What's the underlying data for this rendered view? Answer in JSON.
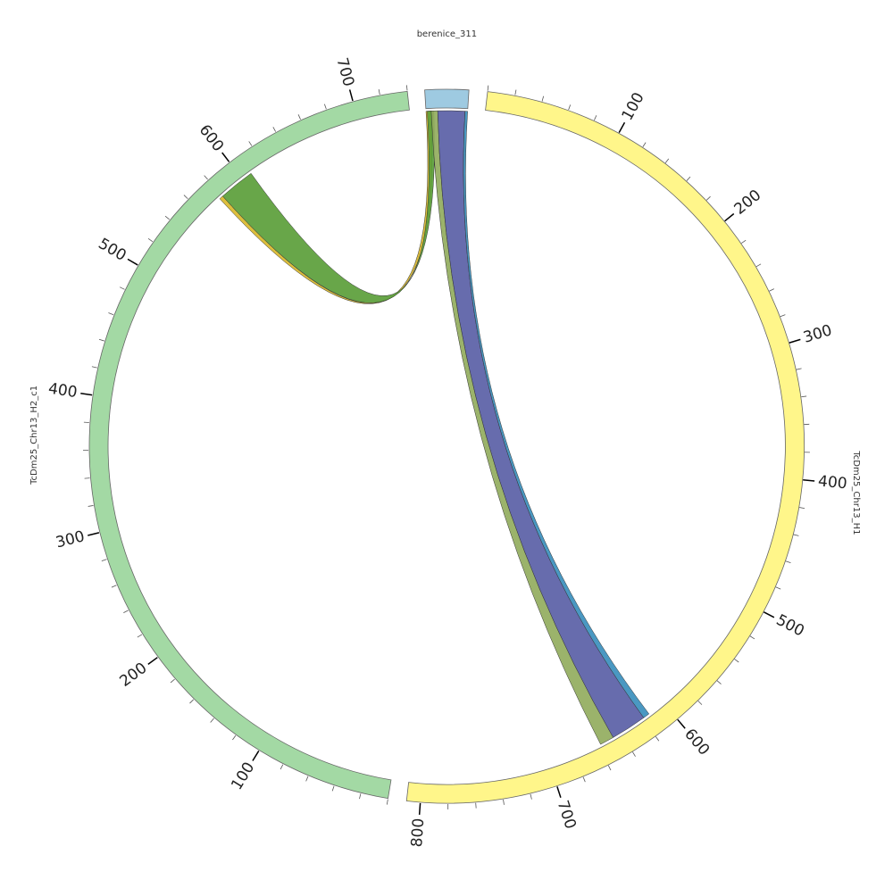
{
  "chart_data": {
    "type": "chord",
    "segments": [
      {
        "name": "berenice_311",
        "length": 32,
        "color": "#9ecae1",
        "ticks": []
      },
      {
        "name": "TcDm25_Chr13_H1",
        "length": 810,
        "color": "#fff68a",
        "ticks": [
          100,
          200,
          300,
          400,
          500,
          600,
          700,
          800
        ]
      },
      {
        "name": "TcDm25_Chr13_H2_c1",
        "length": 740,
        "color": "#a3d9a4",
        "ticks": [
          100,
          200,
          300,
          400,
          500,
          600,
          700
        ]
      }
    ],
    "minor_tick_interval": 20,
    "links": [
      {
        "source": 0,
        "source_start": 0,
        "source_end": 4,
        "target": 2,
        "target_start": 577,
        "target_end": 580,
        "color": "#d9b82c"
      },
      {
        "source": 0,
        "source_start": 1,
        "source_end": 6,
        "target": 2,
        "target_start": 580,
        "target_end": 608,
        "color": "#5b9e3a"
      },
      {
        "source": 0,
        "source_start": 4,
        "source_end": 9,
        "target": 1,
        "target_start": 647,
        "target_end": 658,
        "color": "#93ad5e"
      },
      {
        "source": 0,
        "source_start": 9,
        "source_end": 30,
        "target": 1,
        "target_start": 619,
        "target_end": 647,
        "color": "#5a5fa6"
      },
      {
        "source": 0,
        "source_start": 30,
        "source_end": 32,
        "target": 1,
        "target_start": 614,
        "target_end": 619,
        "color": "#3b8fbd"
      }
    ]
  }
}
